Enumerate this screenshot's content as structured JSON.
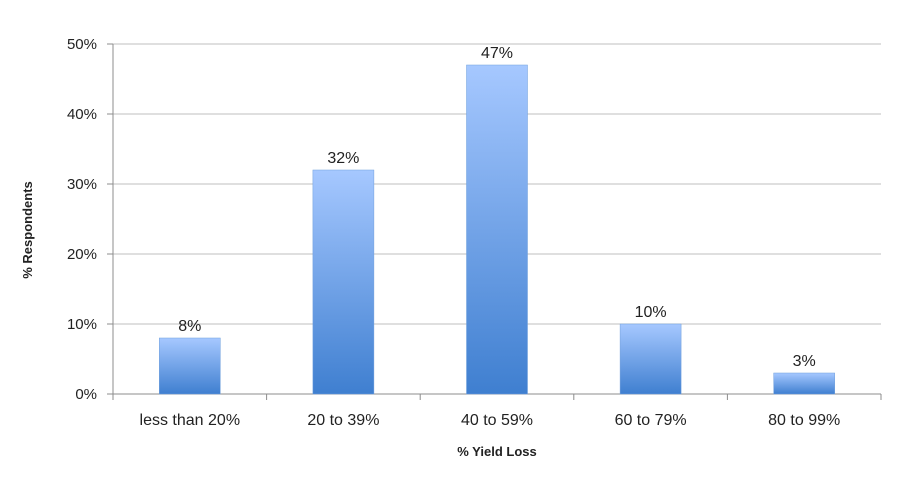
{
  "chart_data": {
    "type": "bar",
    "categories": [
      "less than 20%",
      "20 to 39%",
      "40 to 59%",
      "60 to 79%",
      "80 to 99%"
    ],
    "values": [
      8,
      32,
      47,
      10,
      3
    ],
    "data_labels": [
      "8%",
      "32%",
      "47%",
      "10%",
      "3%"
    ],
    "xlabel": "% Yield Loss",
    "ylabel": "% Respondents",
    "ylim": [
      0,
      50
    ],
    "yticks": [
      0,
      10,
      20,
      30,
      40,
      50
    ],
    "ytick_labels": [
      "0%",
      "10%",
      "20%",
      "30%",
      "40%",
      "50%"
    ],
    "grid": true,
    "legend": "none",
    "colors": {
      "bar_top": "#a6c8ff",
      "bar_bottom": "#3f7fd0"
    }
  }
}
